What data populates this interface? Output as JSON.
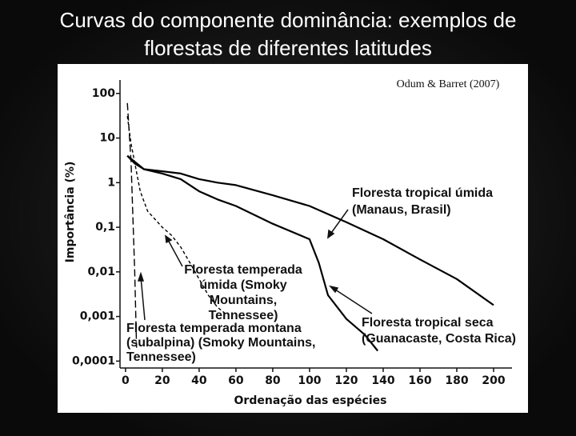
{
  "chart_data": {
    "type": "line",
    "title": [
      "Curvas do componente dominância: exemplos de",
      "florestas de diferentes latitudes"
    ],
    "source": "Odum & Barret (2007)",
    "x_label": "Ordenação das espécies",
    "y_label": "Importância (%)",
    "yscale": "log",
    "xlim": [
      -3,
      210
    ],
    "ylim": [
      7e-05,
      200
    ],
    "xticks": [
      0,
      20,
      40,
      60,
      80,
      100,
      120,
      140,
      160,
      180,
      200
    ],
    "yticks": [
      100,
      10,
      1,
      {
        "value": 0.1,
        "label": "0,1"
      },
      {
        "value": 0.01,
        "label": "0,01"
      },
      {
        "value": 0.001,
        "label": "0,001"
      },
      {
        "value": 0.0001,
        "label": "0,0001"
      }
    ],
    "series": [
      {
        "label": [
          "Floresta tropical úmida",
          "(Manaus, Brasil)"
        ],
        "color": "#000000",
        "style": "solid",
        "x": [
          1,
          5,
          10,
          20,
          30,
          40,
          50,
          60,
          80,
          100,
          120,
          140,
          160,
          180,
          200
        ],
        "values": [
          4.0,
          2.7,
          2.0,
          1.8,
          1.6,
          1.2,
          1.0,
          0.88,
          0.52,
          0.3,
          0.13,
          0.054,
          0.019,
          0.0069,
          0.0018
        ]
      },
      {
        "label": [
          "Floresta tropical seca",
          "(Guanacaste, Costa Rica)"
        ],
        "color": "#000000",
        "style": "solid",
        "x": [
          1,
          10,
          20,
          30,
          40,
          50,
          60,
          80,
          100,
          105,
          110,
          120,
          130,
          137
        ],
        "values": [
          4.0,
          2.0,
          1.6,
          1.2,
          0.64,
          0.42,
          0.3,
          0.12,
          0.054,
          0.016,
          0.003,
          0.00088,
          0.00039,
          0.00017
        ]
      },
      {
        "label": [
          "Floresta temperada",
          "úmida (Smoky",
          "Mountains,",
          "Tennessee)"
        ],
        "color": "#000000",
        "style": "dashed",
        "x": [
          1,
          3,
          8,
          12,
          20,
          25,
          30,
          35,
          40,
          45,
          50,
          55
        ],
        "values": [
          31,
          7.5,
          0.64,
          0.23,
          0.1,
          0.066,
          0.036,
          0.016,
          0.0069,
          0.003,
          0.0016,
          0.0011
        ]
      },
      {
        "label": [
          "Floresta temperada montana",
          "(subalpina) (Smoky Mountains,",
          "Tennessee)"
        ],
        "color": "#000000",
        "style": "longdash",
        "x": [
          1,
          3,
          5,
          6
        ],
        "values": [
          61,
          3.0,
          0.01,
          0.0002
        ]
      }
    ]
  }
}
